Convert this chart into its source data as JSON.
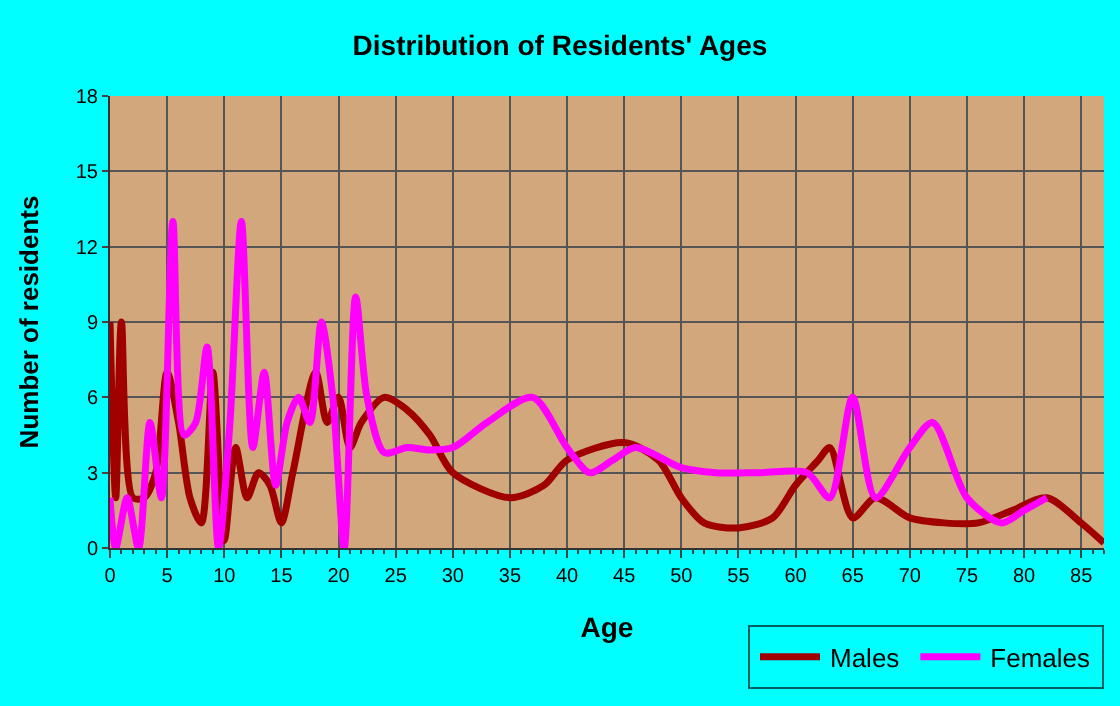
{
  "chart_data": {
    "type": "line",
    "title": "Distribution of Residents' Ages",
    "xlabel": "Age",
    "ylabel": "Number of residents",
    "xlim": [
      0,
      87
    ],
    "xticks": [
      0,
      5,
      10,
      15,
      20,
      25,
      30,
      35,
      40,
      45,
      50,
      55,
      60,
      65,
      70,
      75,
      80,
      85
    ],
    "ylim": [
      0,
      18
    ],
    "yticks": [
      0,
      3,
      6,
      9,
      12,
      15,
      18
    ],
    "grid": true,
    "legend": "bottom right",
    "marker": "none",
    "line_style": "solid",
    "series": [
      {
        "name": "Males",
        "color": "#a00000",
        "x": [
          0,
          0.5,
          1,
          2,
          3,
          4,
          5,
          6,
          7,
          8,
          9,
          10,
          11,
          12,
          13,
          14,
          15,
          16,
          18,
          19,
          20,
          21,
          22,
          24,
          26,
          28,
          30,
          35,
          38,
          40,
          45,
          48,
          50,
          52,
          55,
          58,
          60,
          62,
          63,
          65,
          67,
          70,
          73,
          76,
          79,
          82,
          85,
          87
        ],
        "values": [
          9,
          2,
          9,
          2,
          2,
          3,
          7,
          5,
          2,
          1,
          7,
          0.3,
          4,
          2,
          3,
          2.5,
          1,
          3,
          7,
          5,
          6,
          4,
          5,
          6,
          5.5,
          4.5,
          3,
          2,
          2.5,
          3.5,
          4.2,
          3.5,
          2,
          1,
          0.8,
          1.2,
          2.5,
          3.5,
          4,
          1.2,
          2,
          1.2,
          1,
          1,
          1.5,
          2,
          1,
          0.2
        ]
      },
      {
        "name": "Females",
        "color": "#ff00ff",
        "x": [
          0,
          0.5,
          1.5,
          2.5,
          3.5,
          4.5,
          5.5,
          6.5,
          7.5,
          8.5,
          9.5,
          10.5,
          11.5,
          12.5,
          13.5,
          14.5,
          15.5,
          16.5,
          17.5,
          18.5,
          19.5,
          20.5,
          21.5,
          22.5,
          24,
          26,
          28,
          30,
          33,
          37,
          40,
          42,
          44,
          46,
          50,
          53,
          57,
          61,
          63,
          65,
          67,
          70,
          72,
          75,
          78,
          80,
          82
        ],
        "values": [
          2,
          0,
          2,
          0,
          5,
          2,
          13,
          4.5,
          5,
          8,
          0,
          5,
          13,
          4,
          7,
          2.5,
          5,
          6,
          5,
          9,
          6,
          0,
          10,
          6,
          3.8,
          4,
          3.9,
          4,
          5,
          6,
          4,
          3,
          3.5,
          4,
          3.2,
          3,
          3,
          3,
          2,
          6,
          2,
          4,
          5,
          2,
          1,
          1.5,
          2
        ]
      }
    ]
  }
}
